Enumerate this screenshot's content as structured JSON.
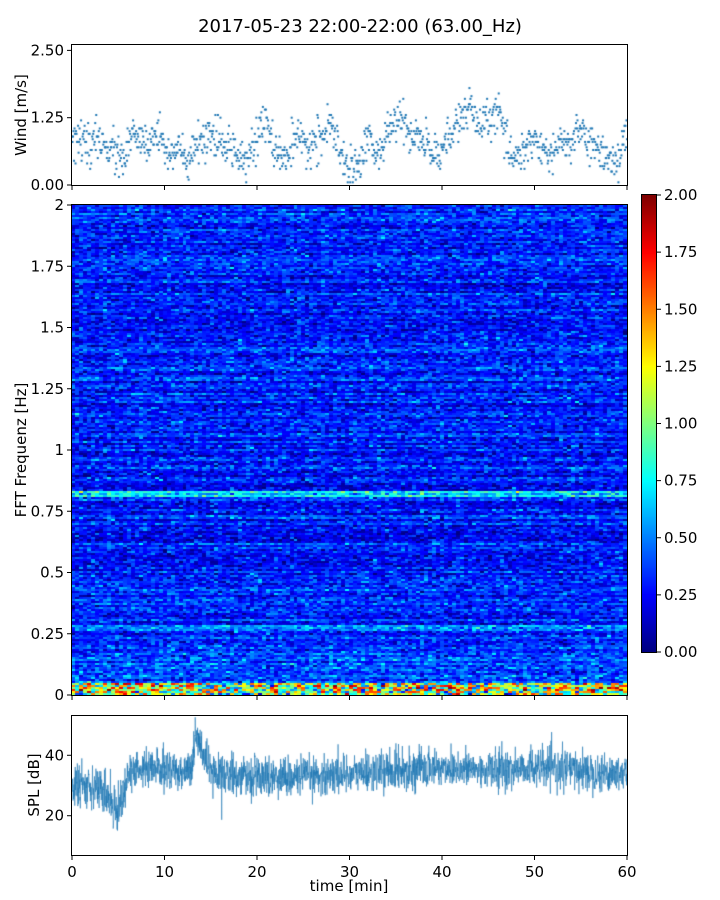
{
  "figure": {
    "title": "2017-05-23 22:00-22:00 (63.00_Hz)"
  },
  "chart_data": [
    {
      "type": "scatter",
      "name": "wind-panel",
      "xlabel": "",
      "ylabel": "Wind [m/s]",
      "xlim": [
        0,
        60
      ],
      "ylim": [
        0,
        2.6
      ],
      "yticks": [
        0,
        1.25,
        2.5
      ],
      "ytick_labels": [
        "0.00",
        "1.25",
        "2.50"
      ],
      "marker_color": "#1f77b4",
      "anchors": {
        "x": [
          0,
          2,
          4,
          5.5,
          6.5,
          8,
          9.5,
          10.5,
          11.5,
          12.5,
          13.5,
          15,
          17,
          19,
          20,
          21,
          22,
          23,
          24,
          25.5,
          27,
          28,
          29,
          30,
          31,
          32,
          33,
          34,
          35,
          36,
          37,
          38,
          39,
          40,
          41,
          42,
          43,
          44,
          45,
          46,
          47,
          48,
          49,
          50,
          51,
          52,
          53,
          54,
          55,
          56,
          57,
          58,
          59,
          60
        ],
        "y": [
          0.75,
          0.8,
          0.7,
          0.45,
          0.9,
          0.75,
          0.95,
          0.6,
          0.7,
          0.35,
          0.75,
          0.85,
          0.7,
          0.55,
          0.9,
          1.15,
          0.6,
          0.5,
          0.8,
          0.7,
          0.9,
          1.1,
          0.55,
          0.2,
          0.45,
          0.9,
          0.55,
          0.85,
          1.3,
          1.05,
          0.9,
          0.85,
          0.55,
          0.7,
          0.9,
          1.25,
          1.45,
          1.05,
          1.2,
          1.4,
          0.75,
          0.55,
          0.7,
          0.85,
          0.6,
          0.6,
          0.75,
          0.8,
          1.05,
          0.75,
          0.6,
          0.55,
          0.45,
          1.0
        ]
      }
    },
    {
      "type": "heatmap",
      "name": "spectrogram-panel",
      "xlabel": "",
      "ylabel": "FFT Frequenz [Hz]",
      "xlim": [
        0,
        60
      ],
      "ylim": [
        0,
        2
      ],
      "yticks": [
        0,
        0.25,
        0.5,
        0.75,
        1,
        1.25,
        1.5,
        1.75,
        2
      ],
      "ytick_labels": [
        "0",
        "0.25",
        "0.5",
        "0.75",
        "1",
        "1.25",
        "1.5",
        "1.75",
        "2"
      ],
      "colormap": "jet",
      "colorbar": {
        "range": [
          0,
          2
        ],
        "ticks": [
          0,
          0.25,
          0.5,
          0.75,
          1.0,
          1.25,
          1.5,
          1.75,
          2.0
        ],
        "tick_labels": [
          "0.00",
          "0.25",
          "0.50",
          "0.75",
          "1.00",
          "1.25",
          "1.50",
          "1.75",
          "2.00"
        ]
      },
      "features": {
        "background_level": 0.3,
        "band_frequencies_hz": [
          0.82,
          0.27
        ],
        "band_levels": [
          0.75,
          0.65
        ],
        "low_freq_peak_hz": [
          0,
          0.05
        ],
        "low_freq_peak_level": 1.8
      }
    },
    {
      "type": "line",
      "name": "spl-panel",
      "xlabel": "time [min]",
      "ylabel": "SPL [dB]",
      "xlim": [
        0,
        60
      ],
      "ylim": [
        7,
        53
      ],
      "xticks": [
        0,
        10,
        20,
        30,
        40,
        50,
        60
      ],
      "xtick_labels": [
        "0",
        "10",
        "20",
        "30",
        "40",
        "50",
        "60"
      ],
      "yticks": [
        20,
        40
      ],
      "ytick_labels": [
        "20",
        "40"
      ],
      "line_color": "#1f77b4",
      "envelope": {
        "x": [
          0,
          2,
          4,
          5,
          6,
          8,
          10,
          12,
          13,
          13.3,
          15,
          20,
          25,
          30,
          35,
          40,
          45,
          50,
          55,
          60
        ],
        "y": [
          29,
          31,
          26,
          22,
          33,
          36,
          35,
          35,
          36,
          47,
          34,
          33,
          33,
          34,
          35,
          36,
          35,
          36,
          35,
          34
        ],
        "spread": [
          8,
          8,
          8,
          8,
          8,
          7,
          7,
          7,
          7,
          7,
          7,
          7,
          7,
          7,
          7,
          7,
          7,
          7,
          7,
          7
        ]
      }
    }
  ]
}
